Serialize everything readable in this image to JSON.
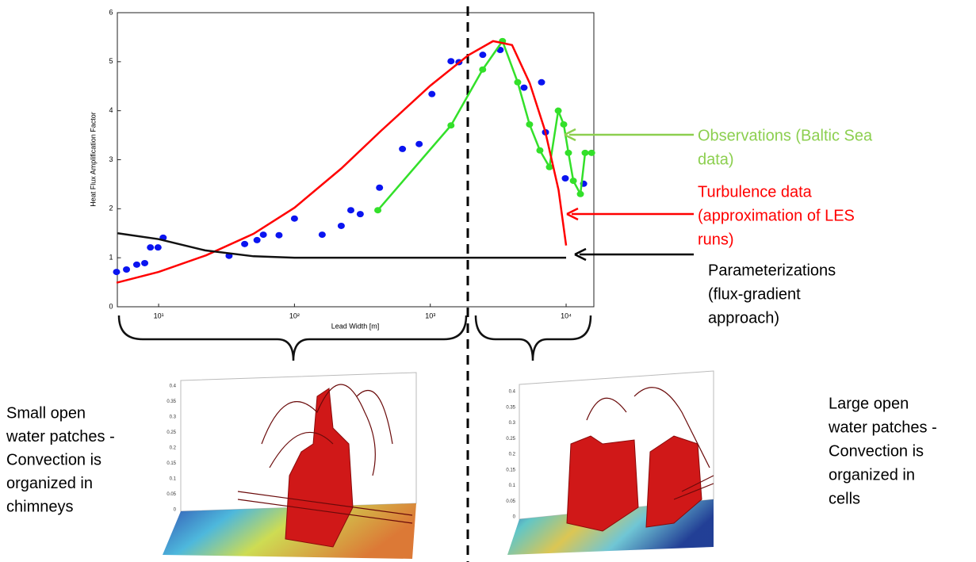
{
  "chart_data": {
    "type": "scatter",
    "x_label": "Lead Width [m]",
    "y_label": "Heat Flux Amplification Factor",
    "xscale": "log",
    "xlim": [
      5,
      16000
    ],
    "ylim": [
      0,
      6
    ],
    "xticks": [
      {
        "value": 10,
        "label": "10¹"
      },
      {
        "value": 100,
        "label": "10²"
      },
      {
        "value": 1000,
        "label": "10³"
      },
      {
        "value": 10000,
        "label": "10⁴"
      }
    ],
    "yticks": [
      0,
      1,
      2,
      3,
      4,
      5,
      6
    ],
    "series": [
      {
        "style": "markers",
        "color": "#0a14f0",
        "x": [
          4.9,
          5.8,
          6.9,
          7.9,
          8.7,
          9.9,
          10.8,
          33,
          43,
          53,
          59,
          77,
          100,
          160,
          221,
          260,
          305,
          423,
          624,
          828,
          1028,
          1420,
          1625,
          2434,
          3270,
          4900,
          6590,
          7050,
          9860,
          13460
        ],
        "values": [
          0.71,
          0.76,
          0.86,
          0.89,
          1.21,
          1.21,
          1.41,
          1.04,
          1.28,
          1.36,
          1.47,
          1.46,
          1.8,
          1.47,
          1.65,
          1.97,
          1.89,
          2.43,
          3.22,
          3.32,
          4.34,
          5.01,
          4.99,
          5.14,
          5.24,
          4.47,
          4.58,
          3.56,
          2.62,
          2.51
        ]
      },
      {
        "style": "line+markers",
        "color": "#33e02a",
        "x": [
          411,
          1420,
          2430,
          3400,
          4400,
          5380,
          6410,
          7540,
          8750,
          9600,
          10400,
          11300,
          12740,
          13800,
          15400
        ],
        "values": [
          1.97,
          3.7,
          4.84,
          5.42,
          4.58,
          3.72,
          3.19,
          2.85,
          4.0,
          3.72,
          3.14,
          2.57,
          2.3,
          3.14,
          3.14
        ]
      },
      {
        "style": "line",
        "color": "#ff0000",
        "x": [
          4.9,
          10,
          22.4,
          50,
          100,
          221,
          434,
          1000,
          1900,
          2900,
          4000,
          5400,
          7000,
          8800,
          10000
        ],
        "values": [
          0.49,
          0.71,
          1.05,
          1.49,
          2.02,
          2.82,
          3.59,
          4.51,
          5.13,
          5.42,
          5.34,
          4.56,
          3.59,
          2.38,
          1.25
        ]
      },
      {
        "style": "line",
        "color": "#111111",
        "x": [
          5,
          10,
          22,
          50,
          100,
          1000,
          10000
        ],
        "values": [
          1.5,
          1.38,
          1.15,
          1.03,
          1.0,
          1.0,
          1.0
        ]
      }
    ],
    "annotations": [
      {
        "color": "#8ccf4f",
        "lines": [
          "Observations (Baltic Sea",
          "data)"
        ]
      },
      {
        "color": "#ff0000",
        "lines": [
          "Turbulence data",
          "(approximation of LES",
          "runs)"
        ]
      },
      {
        "color": "#000000",
        "lines": [
          "Parameterizations",
          "(flux-gradient",
          "approach)"
        ]
      }
    ],
    "left_caption": [
      "Small open",
      "water patches -",
      "Convection is",
      "organized in",
      "chimneys"
    ],
    "right_caption": [
      "Large open",
      "water patches -",
      "Convection is",
      "organized in",
      "cells"
    ],
    "inset_zticks": [
      0,
      0.05,
      0.1,
      0.15,
      0.2,
      0.25,
      0.3,
      0.35,
      0.4
    ]
  }
}
